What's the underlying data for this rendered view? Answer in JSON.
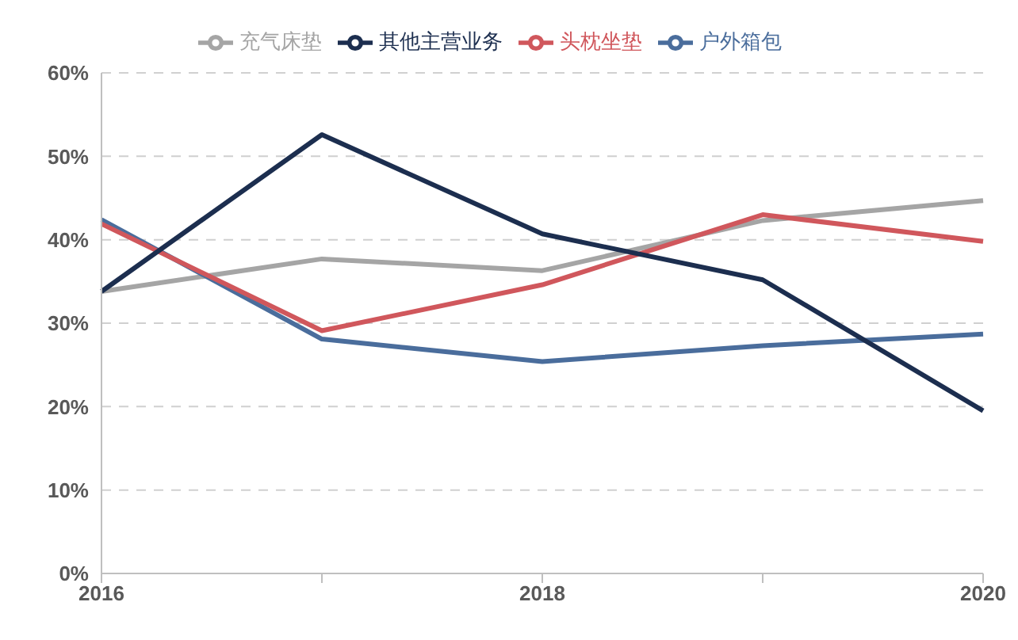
{
  "chart_data": {
    "type": "line",
    "categories": [
      "2016",
      null,
      "2018",
      null,
      "2020"
    ],
    "series": [
      {
        "name": "充气床垫",
        "color": "#a5a5a5",
        "values": [
          33.8,
          37.7,
          36.3,
          42.3,
          44.7
        ]
      },
      {
        "name": "户外箱包",
        "color": "#4a6d9c",
        "values": [
          42.4,
          28.1,
          25.4,
          27.3,
          28.7
        ]
      },
      {
        "name": "头枕坐垫",
        "color": "#d0575c",
        "values": [
          41.9,
          29.1,
          34.6,
          43.0,
          39.8
        ]
      },
      {
        "name": "其他主营业务",
        "color": "#1c2e4f",
        "values": [
          33.8,
          52.6,
          40.7,
          35.2,
          19.5
        ]
      }
    ],
    "ylim": [
      0,
      60
    ],
    "yticks": [
      {
        "value": 0,
        "label": "0%"
      },
      {
        "value": 10,
        "label": "10%"
      },
      {
        "value": 20,
        "label": "20%"
      },
      {
        "value": 30,
        "label": "30%"
      },
      {
        "value": 40,
        "label": "40%"
      },
      {
        "value": 50,
        "label": "50%"
      },
      {
        "value": 60,
        "label": "60%"
      }
    ],
    "grid": "y",
    "legend": "top",
    "marker": "none",
    "line_style": "solid"
  }
}
